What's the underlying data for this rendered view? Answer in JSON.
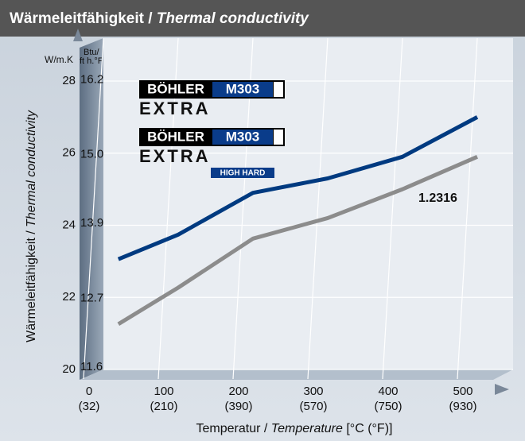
{
  "title": [
    "Wärmeleitfähigkeit /",
    "Thermal conductivity"
  ],
  "chart_data": {
    "type": "line",
    "ylabel": [
      "Wärmeleitfähigkeit /",
      "Thermal conductivity"
    ],
    "xlabel": [
      "Temperatur /",
      "Temperature",
      "[°C (°F)]"
    ],
    "y_unit": "W/m.K",
    "y2_unit": [
      "Btu/",
      "ft h.°F"
    ],
    "xlim": [
      0,
      540
    ],
    "xticks": [
      0,
      100,
      200,
      300,
      400,
      500
    ],
    "x2ticks": [
      {
        "value": 0,
        "label": "(32)"
      },
      {
        "value": 100,
        "label": "(210)"
      },
      {
        "value": 200,
        "label": "(390)"
      },
      {
        "value": 300,
        "label": "(570)"
      },
      {
        "value": 400,
        "label": "(750)"
      },
      {
        "value": 500,
        "label": "(930)"
      }
    ],
    "ylim": [
      20,
      28
    ],
    "yticks": [
      20,
      22,
      24,
      26,
      28
    ],
    "y2lim": [
      11.56,
      16.18
    ],
    "y2ticks": [
      11.6,
      12.7,
      13.9,
      {
        "value": 15.0,
        "label": "15.0"
      },
      16.2
    ],
    "grid": true,
    "x": [
      20,
      100,
      200,
      300,
      400,
      500
    ],
    "series": [
      {
        "color": "#003a80",
        "values": [
          23.06,
          23.74,
          24.9,
          25.3,
          25.9,
          27.0
        ]
      },
      {
        "name": "1.2316",
        "color": "#8c8c8c",
        "values": [
          21.26,
          22.27,
          23.63,
          24.2,
          25.0,
          25.9
        ]
      }
    ],
    "legend": [
      {
        "brand": "BÖHLER",
        "grade": "M303",
        "suffix": "EXTRA"
      },
      {
        "brand": "BÖHLER",
        "grade": "M303",
        "suffix": "EXTRA",
        "tag": "HIGH HARD"
      }
    ]
  }
}
